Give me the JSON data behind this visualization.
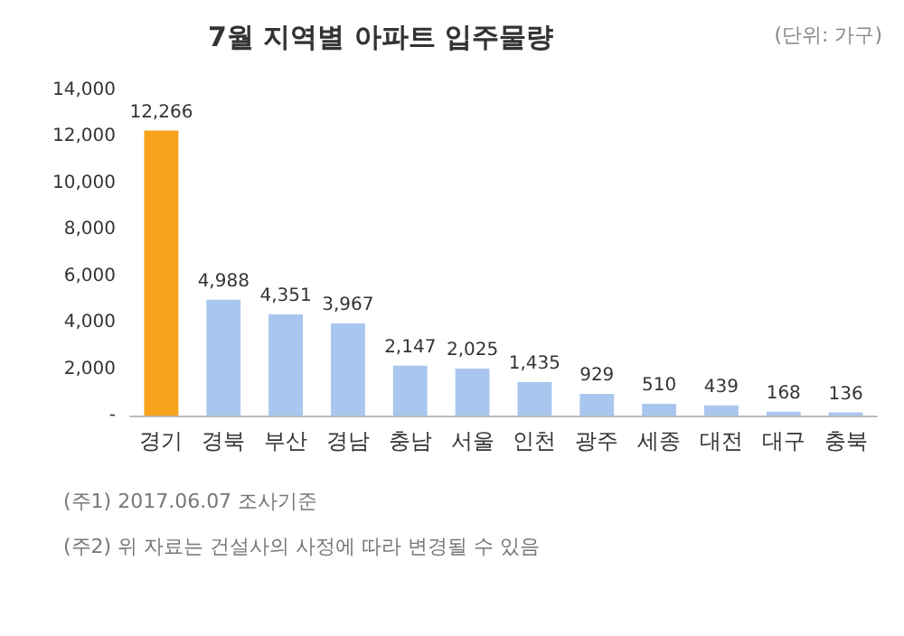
{
  "chart_data": {
    "type": "bar",
    "title": "7월 지역별 아파트 입주물량",
    "subtitle": "(단위: 가구)",
    "categories": [
      "경기",
      "경북",
      "부산",
      "경남",
      "충남",
      "서울",
      "인천",
      "광주",
      "세종",
      "대전",
      "대구",
      "충북"
    ],
    "values": [
      12266,
      4988,
      4351,
      3967,
      2147,
      2025,
      1435,
      929,
      510,
      439,
      168,
      136
    ],
    "colors": [
      "#f7a21b",
      "#a9c6ef",
      "#a9c6ef",
      "#a9c6ef",
      "#a9c6ef",
      "#a9c6ef",
      "#a9c6ef",
      "#a9c6ef",
      "#a9c6ef",
      "#a9c6ef",
      "#a9c6ef",
      "#a9c6ef"
    ],
    "ylim": [
      0,
      14000
    ],
    "yticks": [
      {
        "value": 0,
        "label": "-"
      },
      {
        "value": 2000,
        "label": "2,000"
      },
      {
        "value": 4000,
        "label": "4,000"
      },
      {
        "value": 6000,
        "label": "6,000"
      },
      {
        "value": 8000,
        "label": "8,000"
      },
      {
        "value": 10000,
        "label": "10,000"
      },
      {
        "value": 12000,
        "label": "12,000"
      },
      {
        "value": 14000,
        "label": "14,000"
      }
    ],
    "value_labels": [
      "12,266",
      "4,988",
      "4,351",
      "3,967",
      "2,147",
      "2,025",
      "1,435",
      "929",
      "510",
      "439",
      "168",
      "136"
    ],
    "grid": false,
    "annotations": [
      "(주1) 2017.06.07 조사기준",
      "(주2) 위 자료는 건설사의 사정에 따라 변경될 수 있음"
    ]
  }
}
